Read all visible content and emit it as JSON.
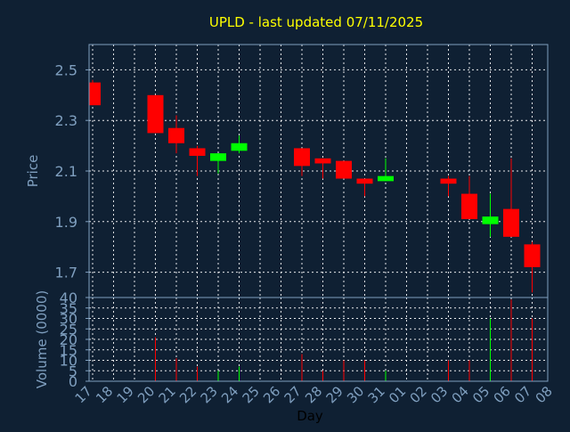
{
  "chart_data": {
    "type": "candlestick",
    "title": "UPLD - last updated 07/11/2025",
    "xlabel": "Day",
    "colors": {
      "background": "#0f2033",
      "title": "#ffff00",
      "axis_text": "#7f9fbf",
      "grid": "#ffffff",
      "up": "#00ff00",
      "down": "#ff0000"
    },
    "x_ticks": [
      "17",
      "18",
      "19",
      "20",
      "21",
      "22",
      "23",
      "24",
      "25",
      "26",
      "27",
      "28",
      "29",
      "30",
      "31",
      "01",
      "02",
      "03",
      "04",
      "05",
      "06",
      "07",
      "08"
    ],
    "price": {
      "ylabel": "Price",
      "ylim": [
        1.6,
        2.6
      ],
      "yticks": [
        "1.7",
        "1.9",
        "2.1",
        "2.3",
        "2.5"
      ],
      "candles": [
        {
          "x": "17",
          "open": 2.45,
          "high": 2.46,
          "low": 2.36,
          "close": 2.36
        },
        {
          "x": "20",
          "open": 2.4,
          "high": 2.4,
          "low": 2.25,
          "close": 2.25
        },
        {
          "x": "21",
          "open": 2.27,
          "high": 2.32,
          "low": 2.17,
          "close": 2.21
        },
        {
          "x": "22",
          "open": 2.19,
          "high": 2.2,
          "low": 2.08,
          "close": 2.16
        },
        {
          "x": "23",
          "open": 2.14,
          "high": 2.17,
          "low": 2.09,
          "close": 2.17
        },
        {
          "x": "24",
          "open": 2.18,
          "high": 2.24,
          "low": 2.17,
          "close": 2.21
        },
        {
          "x": "27",
          "open": 2.19,
          "high": 2.19,
          "low": 2.08,
          "close": 2.12
        },
        {
          "x": "28",
          "open": 2.15,
          "high": 2.15,
          "low": 2.07,
          "close": 2.13
        },
        {
          "x": "29",
          "open": 2.14,
          "high": 2.14,
          "low": 2.07,
          "close": 2.07
        },
        {
          "x": "30",
          "open": 2.07,
          "high": 2.07,
          "low": 2.0,
          "close": 2.05
        },
        {
          "x": "31",
          "open": 2.06,
          "high": 2.15,
          "low": 2.06,
          "close": 2.08
        },
        {
          "x": "03",
          "open": 2.07,
          "high": 2.08,
          "low": 2.0,
          "close": 2.05
        },
        {
          "x": "04",
          "open": 2.01,
          "high": 2.08,
          "low": 1.91,
          "close": 1.91
        },
        {
          "x": "05",
          "open": 1.89,
          "high": 2.01,
          "low": 1.84,
          "close": 1.92
        },
        {
          "x": "06",
          "open": 1.95,
          "high": 2.15,
          "low": 1.84,
          "close": 1.84
        },
        {
          "x": "07",
          "open": 1.81,
          "high": 1.82,
          "low": 1.62,
          "close": 1.72
        }
      ]
    },
    "volume": {
      "ylabel": "Volume (0000)",
      "ylim": [
        0,
        40
      ],
      "yticks": [
        "0",
        "5",
        "10",
        "15",
        "20",
        "25",
        "30",
        "35",
        "40"
      ],
      "bars": [
        {
          "x": "17",
          "value": 0,
          "direction": "down"
        },
        {
          "x": "20",
          "value": 21,
          "direction": "down"
        },
        {
          "x": "21",
          "value": 11,
          "direction": "down"
        },
        {
          "x": "22",
          "value": 7,
          "direction": "down"
        },
        {
          "x": "23",
          "value": 5,
          "direction": "up"
        },
        {
          "x": "24",
          "value": 7,
          "direction": "up"
        },
        {
          "x": "27",
          "value": 13,
          "direction": "down"
        },
        {
          "x": "28",
          "value": 5,
          "direction": "down"
        },
        {
          "x": "29",
          "value": 10,
          "direction": "down"
        },
        {
          "x": "30",
          "value": 10,
          "direction": "down"
        },
        {
          "x": "31",
          "value": 5,
          "direction": "up"
        },
        {
          "x": "03",
          "value": 10,
          "direction": "down"
        },
        {
          "x": "04",
          "value": 10,
          "direction": "down"
        },
        {
          "x": "05",
          "value": 30,
          "direction": "up"
        },
        {
          "x": "06",
          "value": 39,
          "direction": "down"
        },
        {
          "x": "07",
          "value": 30,
          "direction": "down"
        }
      ]
    }
  }
}
